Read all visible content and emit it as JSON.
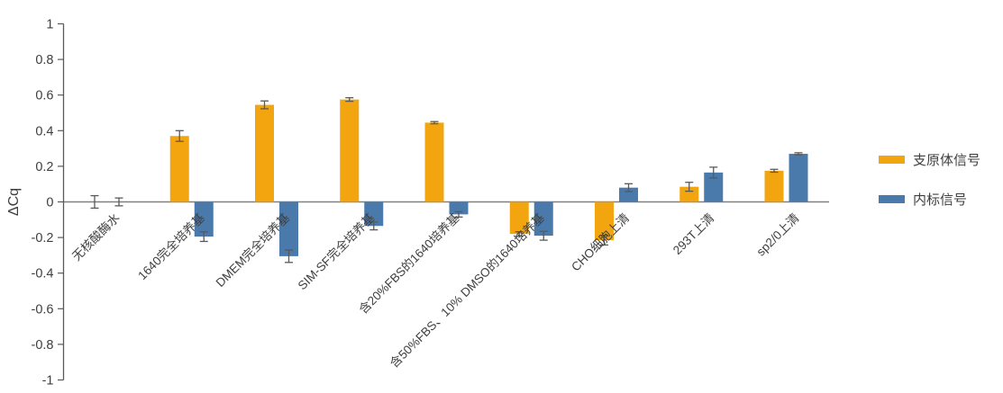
{
  "chart_data": {
    "type": "bar",
    "title": "",
    "ylabel": "ΔCq",
    "xlabel": "",
    "ylim": [
      -1,
      1
    ],
    "ytick_step": 0.2,
    "ytick_labels": [
      "1",
      "0.8",
      "0.6",
      "0.4",
      "0.2",
      "0",
      "-0.2",
      "-0.4",
      "-0.6",
      "-0.8",
      "-1"
    ],
    "grid": false,
    "legend_position": "right",
    "categories": [
      "无核酸酶水",
      "1640完全培养基",
      "DMEM完全培养基",
      "SIM-SF完全培养基",
      "含20%FBS的1640培养基",
      "含50%FBS、10% DMSO的1640培养基",
      "CHO细胞上清",
      "293T上清",
      "sp2/0上清"
    ],
    "series": [
      {
        "name": "支原体信号",
        "color": "#F2A50F",
        "values": [
          0,
          0.37,
          0.545,
          0.575,
          0.445,
          -0.18,
          -0.215,
          0.085,
          0.175
        ],
        "errors": [
          0.035,
          0.03,
          0.022,
          0.01,
          0.006,
          0.012,
          0.027,
          0.025,
          0.008
        ]
      },
      {
        "name": "内标信号",
        "color": "#4A79AB",
        "values": [
          0,
          -0.195,
          -0.305,
          -0.135,
          -0.07,
          -0.19,
          0.08,
          0.165,
          0.27
        ],
        "errors": [
          0.022,
          0.027,
          0.035,
          0.022,
          0.015,
          0.025,
          0.022,
          0.03,
          0.006
        ]
      }
    ],
    "error_bar_color": "#595959",
    "axis_color": "#595959",
    "zero_line_color": "#808080",
    "text_color": "#3f3f3f"
  }
}
